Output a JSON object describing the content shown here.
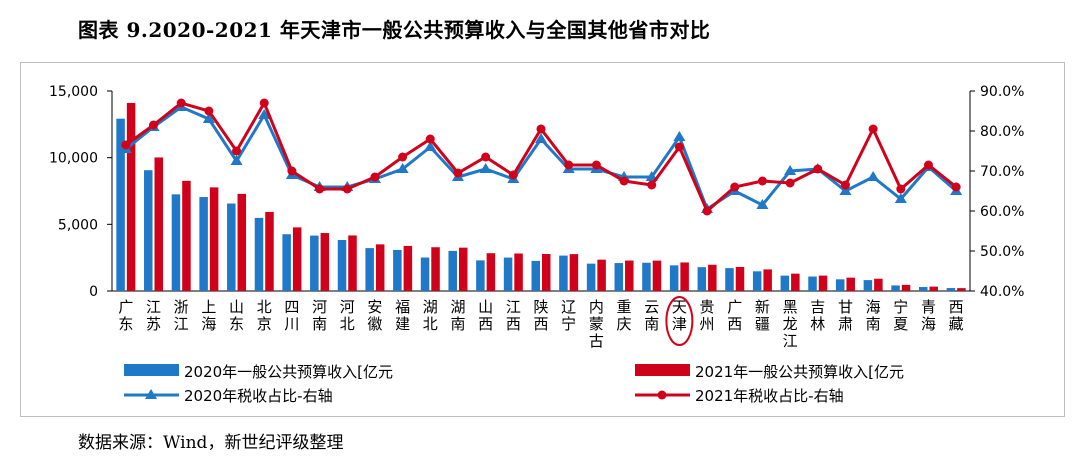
{
  "title": "图表 9.2020-2021 年天津市一般公共预算收入与全国其他省市对比",
  "source": "数据来源：Wind，新世纪评级整理",
  "chart_data": {
    "type": "bar",
    "categories": [
      "广东",
      "江苏",
      "浙江",
      "上海",
      "山东",
      "北京",
      "四川",
      "河南",
      "河北",
      "安徽",
      "福建",
      "湖北",
      "湖南",
      "山西",
      "江西",
      "陕西",
      "辽宁",
      "内蒙古",
      "重庆",
      "云南",
      "天津",
      "贵州",
      "广西",
      "新疆",
      "黑龙江",
      "吉林",
      "甘肃",
      "海南",
      "宁夏",
      "青海",
      "西藏"
    ],
    "highlight_category": "天津",
    "left_axis": {
      "ticks": [
        "0",
        "5,000",
        "10,000",
        "15,000"
      ],
      "min": 0,
      "max": 15000,
      "step": 5000
    },
    "right_axis": {
      "ticks": [
        "40.0%",
        "50.0%",
        "60.0%",
        "70.0%",
        "80.0%",
        "90.0%"
      ],
      "min": 40,
      "max": 90,
      "step": 10
    },
    "series": [
      {
        "name": "2020年一般公共预算收入[亿元",
        "kind": "bar",
        "axis": "left",
        "color": "#1f78c8",
        "values": [
          12923,
          9059,
          7248,
          7046,
          6560,
          5484,
          4258,
          4155,
          3826,
          3216,
          3079,
          2512,
          3008,
          2296,
          2507,
          2257,
          2655,
          2051,
          2095,
          2117,
          1923,
          1787,
          1717,
          1477,
          1153,
          1085,
          875,
          817,
          418,
          298,
          221
        ]
      },
      {
        "name": "2021年一般公共预算收入[亿元",
        "kind": "bar",
        "axis": "left",
        "color": "#d0021b",
        "values": [
          14103,
          10015,
          8263,
          7772,
          7284,
          5932,
          4773,
          4347,
          4167,
          3498,
          3383,
          3283,
          3251,
          2835,
          2813,
          2775,
          2766,
          2350,
          2285,
          2279,
          2141,
          1970,
          1800,
          1619,
          1301,
          1154,
          1002,
          920,
          460,
          329,
          215
        ]
      },
      {
        "name": "2020年税收占比-右轴",
        "kind": "line",
        "axis": "right",
        "color": "#1f78c8",
        "marker": "triangle",
        "values": [
          75.5,
          81.0,
          86.0,
          83.0,
          72.5,
          84.0,
          69.0,
          66.0,
          66.0,
          68.0,
          70.5,
          76.0,
          68.5,
          70.5,
          68.0,
          78.0,
          70.5,
          70.5,
          68.5,
          68.5,
          78.5,
          60.5,
          65.0,
          61.5,
          70.0,
          70.5,
          65.0,
          68.5,
          63.0,
          71.0,
          65.0
        ]
      },
      {
        "name": "2021年税收占比-右轴",
        "kind": "line",
        "axis": "right",
        "color": "#d0021b",
        "marker": "circle",
        "values": [
          76.5,
          81.5,
          87.0,
          85.0,
          75.0,
          87.0,
          70.0,
          65.5,
          65.5,
          68.5,
          73.5,
          78.0,
          69.5,
          73.5,
          69.0,
          80.5,
          71.5,
          71.5,
          67.5,
          66.5,
          76.0,
          60.0,
          66.0,
          67.5,
          67.0,
          70.5,
          66.5,
          80.5,
          65.5,
          71.5,
          66.0
        ]
      }
    ]
  }
}
